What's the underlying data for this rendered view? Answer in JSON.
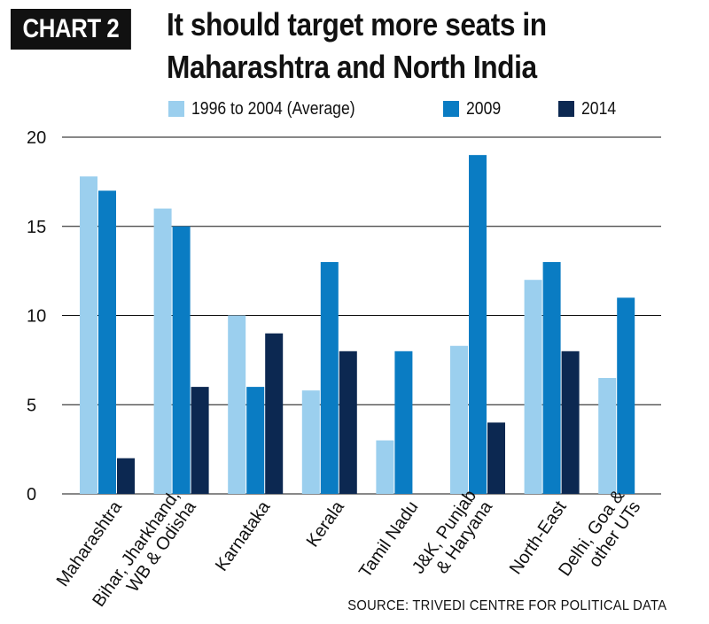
{
  "header": {
    "badge": "CHART 2",
    "title_line1": "It should target more seats in",
    "title_line2": "Maharashtra and North India"
  },
  "source": "SOURCE: TRIVEDI CENTRE FOR POLITICAL DATA",
  "chart_data": {
    "type": "bar",
    "title": "It should target more seats in Maharashtra and North India",
    "xlabel": "",
    "ylabel": "",
    "ylim": [
      0,
      20
    ],
    "yticks": [
      0,
      5,
      10,
      15,
      20
    ],
    "grid": true,
    "legend_position": "top",
    "categories": [
      [
        "Maharashtra"
      ],
      [
        "Bihar, Jharkhand,",
        "WB & Odisha"
      ],
      [
        "Karnataka"
      ],
      [
        "Kerala"
      ],
      [
        "Tamil Nadu"
      ],
      [
        "J&K, Punjab",
        "& Haryana"
      ],
      [
        "North-East"
      ],
      [
        "Delhi, Goa &",
        "other UTs"
      ]
    ],
    "series": [
      {
        "name": "1996 to 2004 (Average)",
        "color": "#9bcfee",
        "values": [
          17.8,
          16,
          10,
          5.8,
          3,
          8.3,
          12,
          6.5
        ]
      },
      {
        "name": "2009",
        "color": "#0a7cc3",
        "values": [
          17,
          15,
          6,
          13,
          8,
          19,
          13,
          11
        ]
      },
      {
        "name": "2014",
        "color": "#0c2851",
        "values": [
          2,
          6,
          9,
          8,
          0,
          4,
          8,
          0
        ]
      }
    ]
  }
}
